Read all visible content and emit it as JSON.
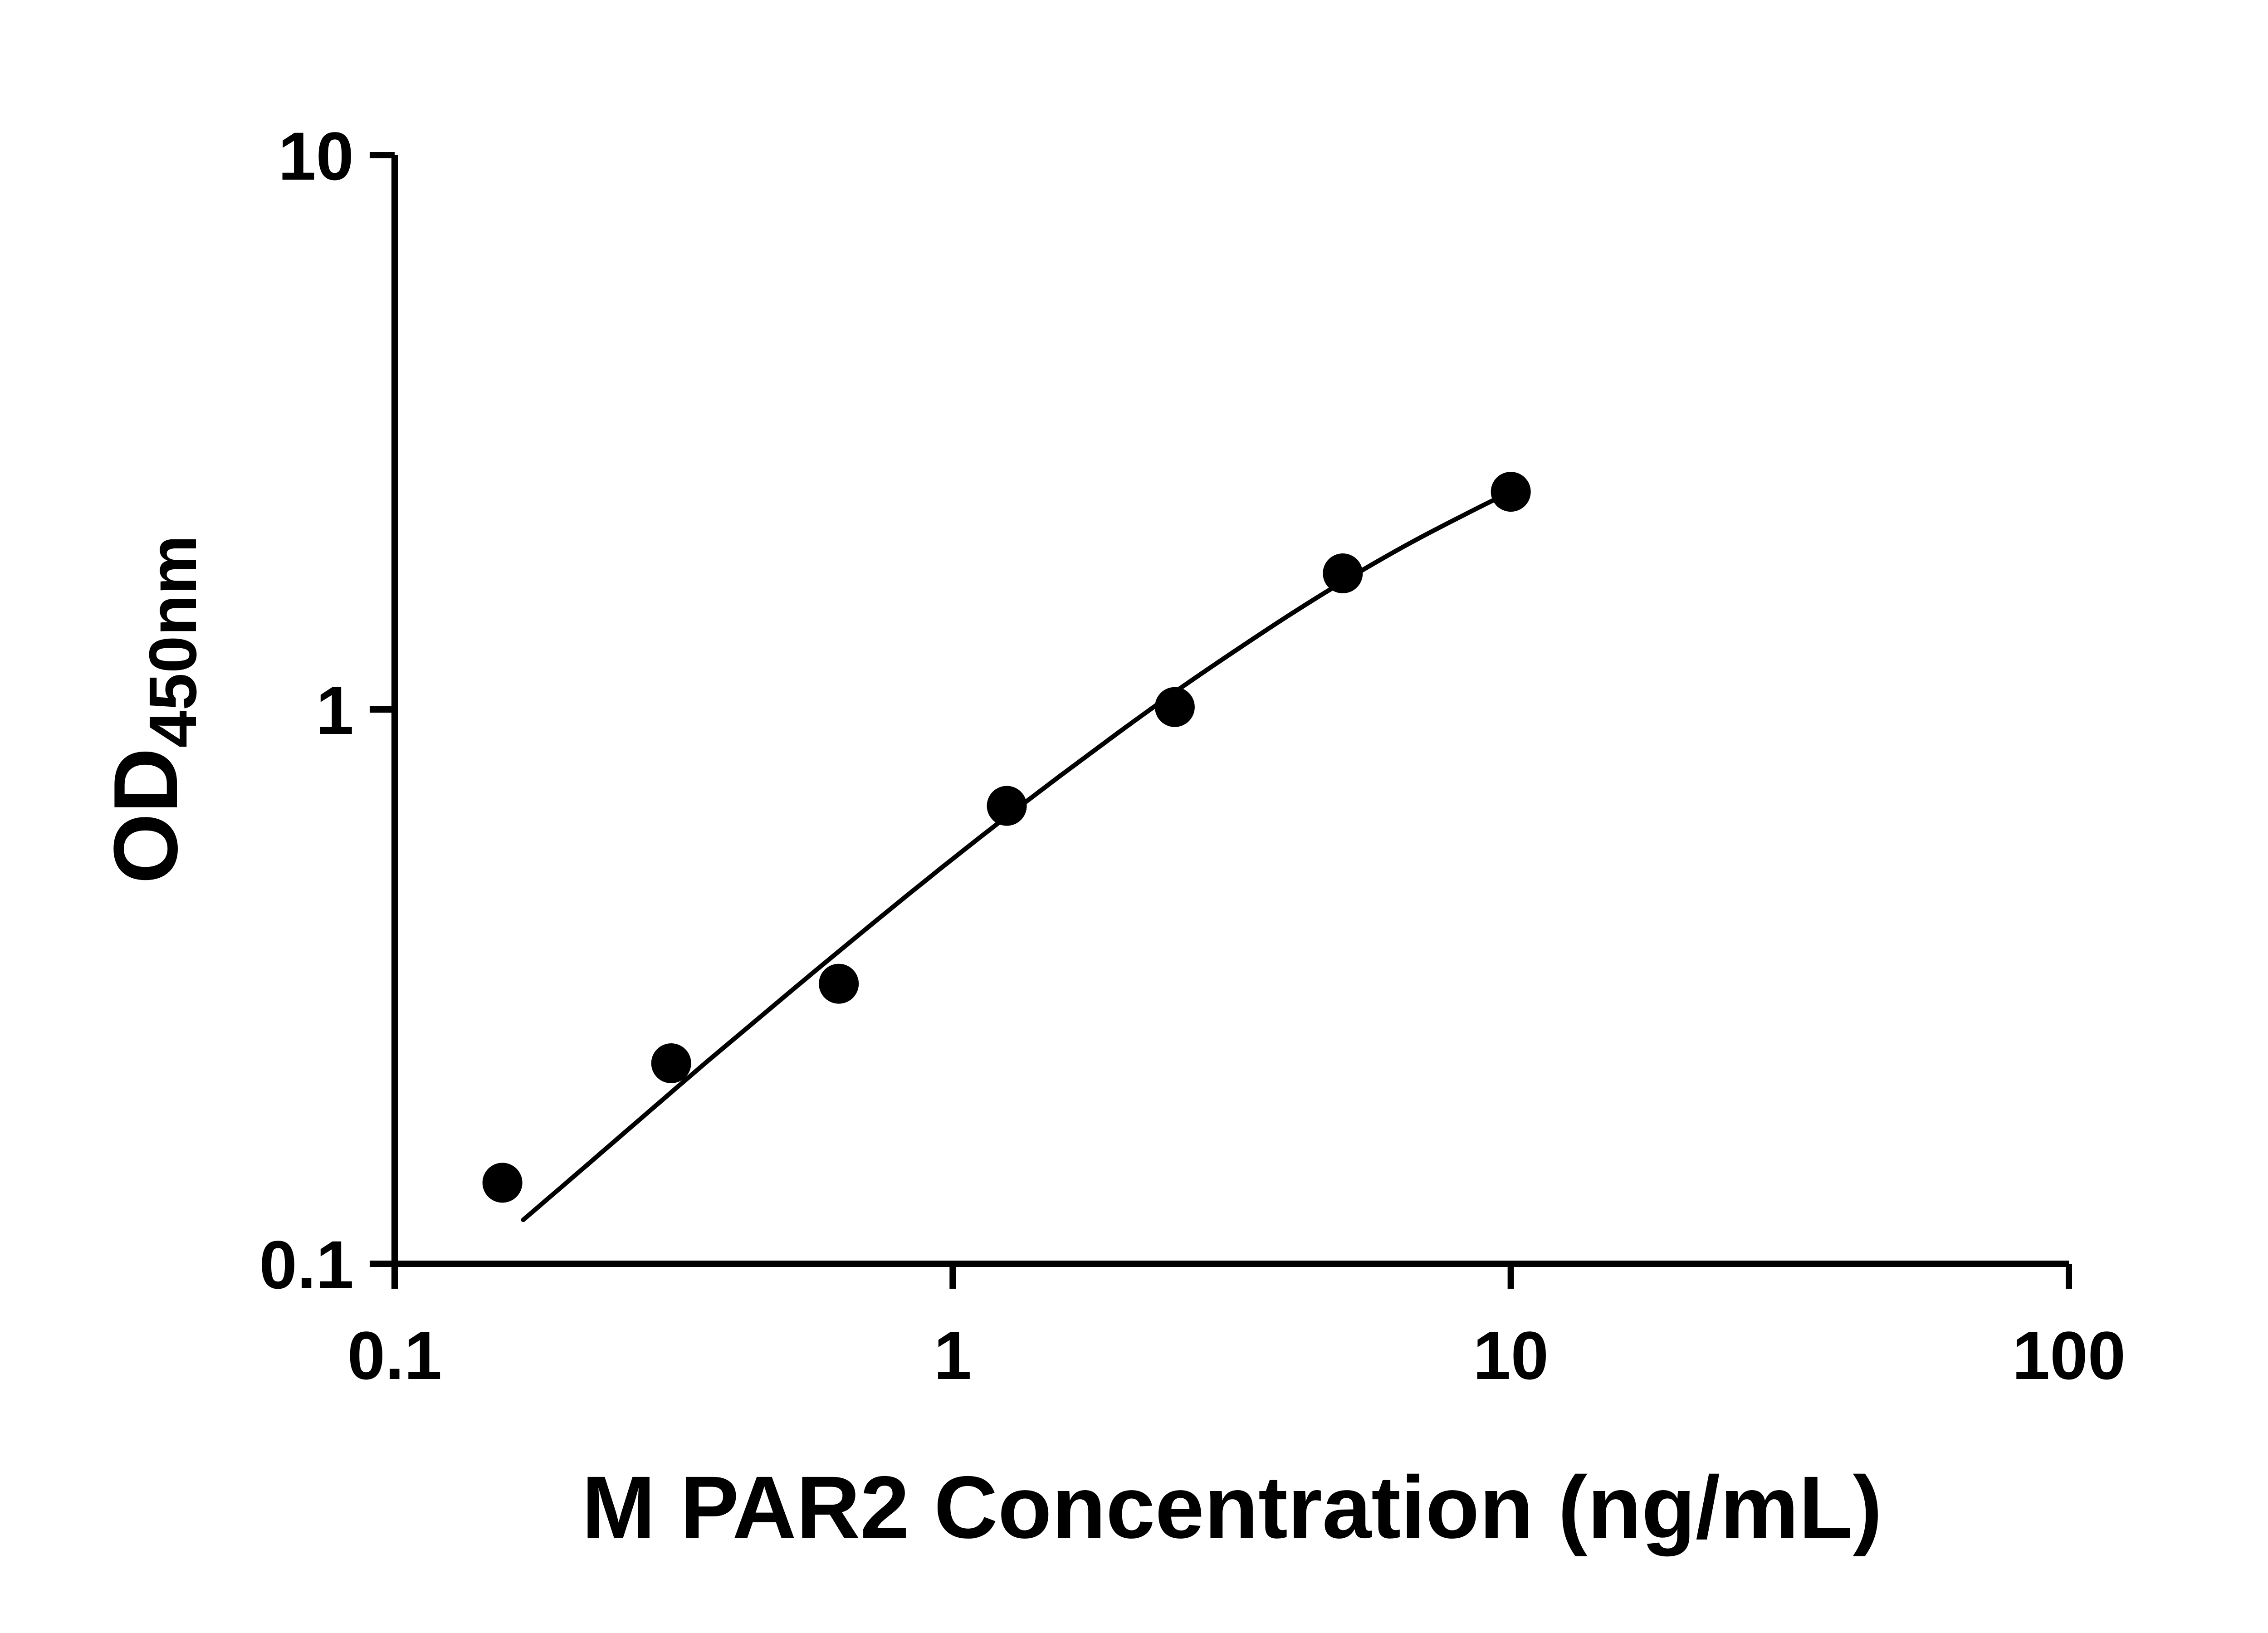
{
  "chart_data": {
    "type": "scatter",
    "title": "",
    "xlabel": "M PAR2 Concentration (ng/mL)",
    "ylabel": "OD450nm",
    "ylabel_main": "OD",
    "ylabel_sub": "450nm",
    "x_scale": "log10",
    "y_scale": "log10",
    "xlim": [
      0.1,
      100
    ],
    "ylim": [
      0.1,
      10
    ],
    "x_ticks": [
      0.1,
      1,
      10,
      100
    ],
    "x_tick_labels": [
      "0.1",
      "1",
      "10",
      "100"
    ],
    "y_ticks": [
      0.1,
      1,
      10
    ],
    "y_tick_labels": [
      "0.1",
      "1",
      "10"
    ],
    "grid": false,
    "legend": "none",
    "colors": {
      "axis": "#000000",
      "marker": "#000000",
      "curve": "#000000",
      "background": "#ffffff"
    },
    "series": [
      {
        "name": "fitted-curve",
        "type": "line",
        "x": [
          0.17,
          0.22,
          0.28,
          0.36,
          0.46,
          0.58,
          0.74,
          0.95,
          1.21,
          1.55,
          1.98,
          2.53,
          3.23,
          4.12,
          5.26,
          6.71,
          8.57,
          10.0
        ],
        "y": [
          0.12,
          0.15,
          0.185,
          0.23,
          0.283,
          0.344,
          0.421,
          0.516,
          0.625,
          0.756,
          0.908,
          1.084,
          1.282,
          1.506,
          1.752,
          2.014,
          2.288,
          2.471
        ]
      },
      {
        "name": "M-PAR2-standard-points",
        "type": "scatter",
        "marker": "filled-circle",
        "x": [
          0.156,
          0.313,
          0.625,
          1.25,
          2.5,
          5,
          10
        ],
        "y": [
          0.14,
          0.23,
          0.32,
          0.67,
          1.01,
          1.76,
          2.47
        ]
      }
    ]
  }
}
